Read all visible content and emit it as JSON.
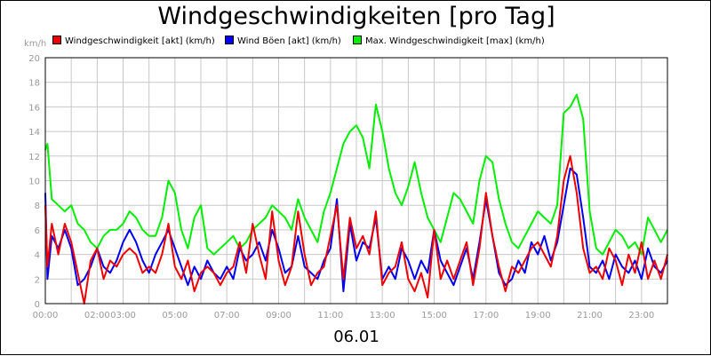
{
  "title": "Windgeschwindigkeiten [pro Tag]",
  "date_label": "06.01",
  "y_unit": "km/h",
  "colors": {
    "grid": "#c8c8c8",
    "axis": "#000000",
    "tick": "#999999"
  },
  "chart_data": {
    "type": "line",
    "title": "Windgeschwindigkeiten [pro Tag]",
    "xlabel": "06.01",
    "ylabel": "km/h",
    "ylim": [
      0,
      20
    ],
    "xlim": [
      "00:00",
      "24:00"
    ],
    "y_ticks": [
      "0",
      "2",
      "4",
      "6",
      "8",
      "10",
      "12",
      "14",
      "16",
      "18",
      "20"
    ],
    "x_tick_labels": [
      "00:00",
      "02:00",
      "03:00",
      "05:00",
      "07:00",
      "09:00",
      "11:00",
      "13:00",
      "15:00",
      "17:00",
      "19:00",
      "21:00",
      "23:00"
    ],
    "grid": true,
    "legend_position": "top",
    "series": [
      {
        "name": "Max. Windgeschwindigkeit [max] (km/h)",
        "color": "#00ee00",
        "points": [
          [
            "00:00",
            12.5
          ],
          [
            "00:05",
            13.0
          ],
          [
            "00:15",
            8.5
          ],
          [
            "00:30",
            8.0
          ],
          [
            "00:45",
            7.5
          ],
          [
            "01:00",
            8.0
          ],
          [
            "01:15",
            6.5
          ],
          [
            "01:30",
            6.0
          ],
          [
            "01:45",
            5.0
          ],
          [
            "02:00",
            4.5
          ],
          [
            "02:15",
            5.5
          ],
          [
            "02:30",
            6.0
          ],
          [
            "02:45",
            6.0
          ],
          [
            "03:00",
            6.5
          ],
          [
            "03:15",
            7.5
          ],
          [
            "03:30",
            7.0
          ],
          [
            "03:45",
            6.0
          ],
          [
            "04:00",
            5.5
          ],
          [
            "04:15",
            5.5
          ],
          [
            "04:30",
            7.0
          ],
          [
            "04:45",
            10.0
          ],
          [
            "05:00",
            9.0
          ],
          [
            "05:15",
            6.0
          ],
          [
            "05:30",
            4.5
          ],
          [
            "05:45",
            7.0
          ],
          [
            "06:00",
            8.0
          ],
          [
            "06:15",
            4.5
          ],
          [
            "06:30",
            4.0
          ],
          [
            "06:45",
            4.5
          ],
          [
            "07:00",
            5.0
          ],
          [
            "07:15",
            5.5
          ],
          [
            "07:30",
            4.5
          ],
          [
            "07:45",
            5.0
          ],
          [
            "08:00",
            6.0
          ],
          [
            "08:15",
            6.5
          ],
          [
            "08:30",
            7.0
          ],
          [
            "08:45",
            8.0
          ],
          [
            "09:00",
            7.5
          ],
          [
            "09:15",
            7.0
          ],
          [
            "09:30",
            6.0
          ],
          [
            "09:45",
            8.5
          ],
          [
            "10:00",
            7.0
          ],
          [
            "10:15",
            6.0
          ],
          [
            "10:30",
            5.0
          ],
          [
            "10:45",
            7.5
          ],
          [
            "11:00",
            9.0
          ],
          [
            "11:15",
            11.0
          ],
          [
            "11:30",
            13.0
          ],
          [
            "11:45",
            14.0
          ],
          [
            "12:00",
            14.5
          ],
          [
            "12:15",
            13.5
          ],
          [
            "12:30",
            11.0
          ],
          [
            "12:45",
            16.2
          ],
          [
            "13:00",
            14.0
          ],
          [
            "13:15",
            11.0
          ],
          [
            "13:30",
            9.0
          ],
          [
            "13:45",
            8.0
          ],
          [
            "14:00",
            9.5
          ],
          [
            "14:15",
            11.5
          ],
          [
            "14:30",
            9.0
          ],
          [
            "14:45",
            7.0
          ],
          [
            "15:00",
            6.0
          ],
          [
            "15:15",
            5.0
          ],
          [
            "15:30",
            7.0
          ],
          [
            "15:45",
            9.0
          ],
          [
            "16:00",
            8.5
          ],
          [
            "16:15",
            7.5
          ],
          [
            "16:30",
            6.5
          ],
          [
            "16:45",
            10.0
          ],
          [
            "17:00",
            12.0
          ],
          [
            "17:15",
            11.5
          ],
          [
            "17:30",
            8.5
          ],
          [
            "17:45",
            6.5
          ],
          [
            "18:00",
            5.0
          ],
          [
            "18:15",
            4.5
          ],
          [
            "18:30",
            5.5
          ],
          [
            "18:45",
            6.5
          ],
          [
            "19:00",
            7.5
          ],
          [
            "19:15",
            7.0
          ],
          [
            "19:30",
            6.5
          ],
          [
            "19:45",
            8.0
          ],
          [
            "20:00",
            15.5
          ],
          [
            "20:15",
            16.0
          ],
          [
            "20:30",
            17.0
          ],
          [
            "20:45",
            15.0
          ],
          [
            "21:00",
            7.5
          ],
          [
            "21:15",
            4.5
          ],
          [
            "21:30",
            4.0
          ],
          [
            "21:45",
            5.0
          ],
          [
            "22:00",
            6.0
          ],
          [
            "22:15",
            5.5
          ],
          [
            "22:30",
            4.5
          ],
          [
            "22:45",
            5.0
          ],
          [
            "23:00",
            4.0
          ],
          [
            "23:15",
            7.0
          ],
          [
            "23:30",
            6.0
          ],
          [
            "23:45",
            5.0
          ],
          [
            "24:00",
            6.0
          ]
        ]
      },
      {
        "name": "Wind Böen [akt] (km/h)",
        "color": "#0000ee",
        "points": [
          [
            "00:00",
            9.0
          ],
          [
            "00:05",
            2.0
          ],
          [
            "00:15",
            5.5
          ],
          [
            "00:30",
            4.5
          ],
          [
            "00:45",
            6.0
          ],
          [
            "01:00",
            4.5
          ],
          [
            "01:15",
            1.5
          ],
          [
            "01:30",
            2.0
          ],
          [
            "01:45",
            3.0
          ],
          [
            "02:00",
            4.5
          ],
          [
            "02:15",
            3.0
          ],
          [
            "02:30",
            2.5
          ],
          [
            "02:45",
            3.5
          ],
          [
            "03:00",
            5.0
          ],
          [
            "03:15",
            6.0
          ],
          [
            "03:30",
            5.0
          ],
          [
            "03:45",
            3.5
          ],
          [
            "04:00",
            2.5
          ],
          [
            "04:15",
            4.0
          ],
          [
            "04:30",
            5.0
          ],
          [
            "04:45",
            6.0
          ],
          [
            "05:00",
            4.5
          ],
          [
            "05:15",
            3.0
          ],
          [
            "05:30",
            1.5
          ],
          [
            "05:45",
            3.0
          ],
          [
            "06:00",
            2.0
          ],
          [
            "06:15",
            3.5
          ],
          [
            "06:30",
            2.5
          ],
          [
            "06:45",
            2.0
          ],
          [
            "07:00",
            3.0
          ],
          [
            "07:15",
            2.0
          ],
          [
            "07:30",
            4.5
          ],
          [
            "07:45",
            3.5
          ],
          [
            "08:00",
            4.0
          ],
          [
            "08:15",
            5.0
          ],
          [
            "08:30",
            3.5
          ],
          [
            "08:45",
            6.0
          ],
          [
            "09:00",
            4.5
          ],
          [
            "09:15",
            2.5
          ],
          [
            "09:30",
            3.0
          ],
          [
            "09:45",
            5.5
          ],
          [
            "10:00",
            3.0
          ],
          [
            "10:15",
            2.5
          ],
          [
            "10:30",
            2.0
          ],
          [
            "10:45",
            3.5
          ],
          [
            "11:00",
            4.5
          ],
          [
            "11:15",
            8.5
          ],
          [
            "11:30",
            1.0
          ],
          [
            "11:45",
            6.5
          ],
          [
            "12:00",
            3.5
          ],
          [
            "12:15",
            5.0
          ],
          [
            "12:30",
            4.5
          ],
          [
            "12:45",
            7.0
          ],
          [
            "13:00",
            2.0
          ],
          [
            "13:15",
            3.0
          ],
          [
            "13:30",
            2.0
          ],
          [
            "13:45",
            4.5
          ],
          [
            "14:00",
            3.5
          ],
          [
            "14:15",
            2.0
          ],
          [
            "14:30",
            3.5
          ],
          [
            "14:45",
            2.5
          ],
          [
            "15:00",
            6.0
          ],
          [
            "15:15",
            3.5
          ],
          [
            "15:30",
            2.5
          ],
          [
            "15:45",
            1.5
          ],
          [
            "16:00",
            3.0
          ],
          [
            "16:15",
            4.5
          ],
          [
            "16:30",
            2.0
          ],
          [
            "16:45",
            5.0
          ],
          [
            "17:00",
            8.5
          ],
          [
            "17:15",
            5.5
          ],
          [
            "17:30",
            2.5
          ],
          [
            "17:45",
            1.5
          ],
          [
            "18:00",
            2.0
          ],
          [
            "18:15",
            3.5
          ],
          [
            "18:30",
            2.5
          ],
          [
            "18:45",
            5.0
          ],
          [
            "19:00",
            4.0
          ],
          [
            "19:15",
            5.5
          ],
          [
            "19:30",
            3.5
          ],
          [
            "19:45",
            5.0
          ],
          [
            "20:00",
            8.0
          ],
          [
            "20:15",
            11.0
          ],
          [
            "20:30",
            10.5
          ],
          [
            "20:45",
            7.0
          ],
          [
            "21:00",
            3.0
          ],
          [
            "21:15",
            2.5
          ],
          [
            "21:30",
            3.5
          ],
          [
            "21:45",
            2.0
          ],
          [
            "22:00",
            4.0
          ],
          [
            "22:15",
            3.0
          ],
          [
            "22:30",
            2.5
          ],
          [
            "22:45",
            3.5
          ],
          [
            "23:00",
            2.0
          ],
          [
            "23:15",
            4.5
          ],
          [
            "23:30",
            3.0
          ],
          [
            "23:45",
            2.5
          ],
          [
            "24:00",
            3.5
          ]
        ]
      },
      {
        "name": "Windgeschwindigkeit [akt] (km/h)",
        "color": "#ee0000",
        "points": [
          [
            "00:00",
            8.0
          ],
          [
            "00:05",
            3.0
          ],
          [
            "00:15",
            6.5
          ],
          [
            "00:30",
            4.0
          ],
          [
            "00:45",
            6.5
          ],
          [
            "01:00",
            5.0
          ],
          [
            "01:15",
            2.5
          ],
          [
            "01:30",
            0.0
          ],
          [
            "01:45",
            3.5
          ],
          [
            "02:00",
            4.5
          ],
          [
            "02:15",
            2.0
          ],
          [
            "02:30",
            3.5
          ],
          [
            "02:45",
            3.0
          ],
          [
            "03:00",
            4.0
          ],
          [
            "03:15",
            4.5
          ],
          [
            "03:30",
            4.0
          ],
          [
            "03:45",
            2.5
          ],
          [
            "04:00",
            3.0
          ],
          [
            "04:15",
            2.5
          ],
          [
            "04:30",
            4.0
          ],
          [
            "04:45",
            6.5
          ],
          [
            "05:00",
            3.0
          ],
          [
            "05:15",
            2.0
          ],
          [
            "05:30",
            3.5
          ],
          [
            "05:45",
            1.0
          ],
          [
            "06:00",
            2.5
          ],
          [
            "06:15",
            3.0
          ],
          [
            "06:30",
            2.5
          ],
          [
            "06:45",
            1.5
          ],
          [
            "07:00",
            2.5
          ],
          [
            "07:15",
            3.0
          ],
          [
            "07:30",
            5.0
          ],
          [
            "07:45",
            2.5
          ],
          [
            "08:00",
            6.5
          ],
          [
            "08:15",
            4.0
          ],
          [
            "08:30",
            2.0
          ],
          [
            "08:45",
            7.5
          ],
          [
            "09:00",
            3.5
          ],
          [
            "09:15",
            1.5
          ],
          [
            "09:30",
            3.0
          ],
          [
            "09:45",
            7.5
          ],
          [
            "10:00",
            4.0
          ],
          [
            "10:15",
            1.5
          ],
          [
            "10:30",
            2.5
          ],
          [
            "10:45",
            3.0
          ],
          [
            "11:00",
            5.5
          ],
          [
            "11:15",
            8.0
          ],
          [
            "11:30",
            2.0
          ],
          [
            "11:45",
            7.0
          ],
          [
            "12:00",
            4.5
          ],
          [
            "12:15",
            5.5
          ],
          [
            "12:30",
            4.0
          ],
          [
            "12:45",
            7.5
          ],
          [
            "13:00",
            1.5
          ],
          [
            "13:15",
            2.5
          ],
          [
            "13:30",
            3.0
          ],
          [
            "13:45",
            5.0
          ],
          [
            "14:00",
            2.0
          ],
          [
            "14:15",
            1.0
          ],
          [
            "14:30",
            2.5
          ],
          [
            "14:45",
            0.5
          ],
          [
            "15:00",
            6.0
          ],
          [
            "15:15",
            2.0
          ],
          [
            "15:30",
            3.5
          ],
          [
            "15:45",
            2.0
          ],
          [
            "16:00",
            3.5
          ],
          [
            "16:15",
            5.0
          ],
          [
            "16:30",
            1.5
          ],
          [
            "16:45",
            4.5
          ],
          [
            "17:00",
            9.0
          ],
          [
            "17:15",
            5.5
          ],
          [
            "17:30",
            3.0
          ],
          [
            "17:45",
            1.0
          ],
          [
            "18:00",
            3.0
          ],
          [
            "18:15",
            2.5
          ],
          [
            "18:30",
            3.5
          ],
          [
            "18:45",
            4.5
          ],
          [
            "19:00",
            5.0
          ],
          [
            "19:15",
            4.0
          ],
          [
            "19:30",
            3.0
          ],
          [
            "19:45",
            5.5
          ],
          [
            "20:00",
            10.0
          ],
          [
            "20:15",
            12.0
          ],
          [
            "20:30",
            9.0
          ],
          [
            "20:45",
            4.5
          ],
          [
            "21:00",
            2.5
          ],
          [
            "21:15",
            3.0
          ],
          [
            "21:30",
            2.0
          ],
          [
            "21:45",
            4.5
          ],
          [
            "22:00",
            3.5
          ],
          [
            "22:15",
            1.5
          ],
          [
            "22:30",
            4.0
          ],
          [
            "22:45",
            2.5
          ],
          [
            "23:00",
            5.0
          ],
          [
            "23:15",
            2.0
          ],
          [
            "23:30",
            3.5
          ],
          [
            "23:45",
            2.0
          ],
          [
            "24:00",
            4.0
          ]
        ]
      }
    ],
    "legend": [
      "Windgeschwindigkeit [akt] (km/h)",
      "Wind Böen [akt] (km/h)",
      "Max. Windgeschwindigkeit [max] (km/h)"
    ]
  }
}
